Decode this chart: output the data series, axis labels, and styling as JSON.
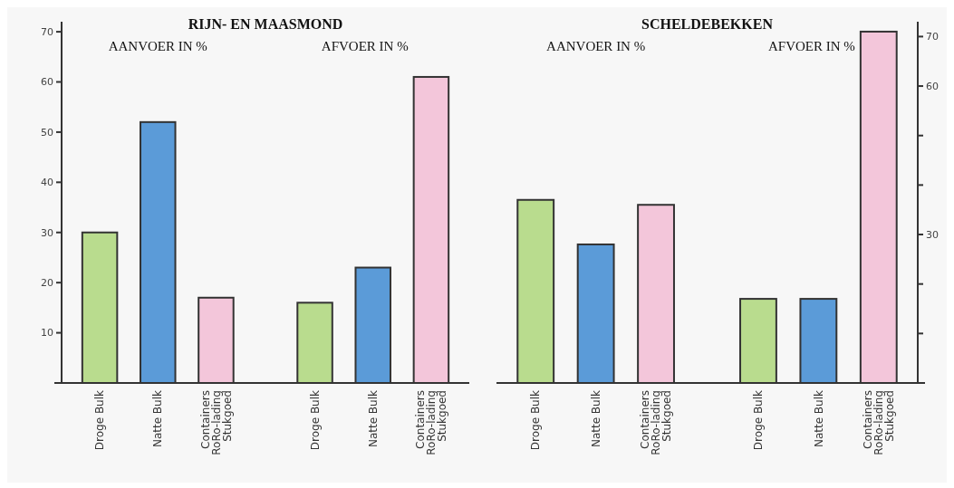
{
  "chart_data": [
    {
      "type": "bar",
      "title": "RIJN- EN MAASMOND",
      "annotations": [
        "AANVOER IN %",
        "AFVOER IN %"
      ],
      "categories": [
        "Droge Bulk",
        "Natte Bulk",
        "Containers\nRoRo-lading\nStukgoed",
        "Droge Bulk",
        "Natte Bulk",
        "Containers\nRoRo-lading\nStukgoed"
      ],
      "values": [
        30,
        52,
        17,
        16,
        23,
        61
      ],
      "colors": [
        "#b9dc8e",
        "#5b9bd8",
        "#f3c6da",
        "#b9dc8e",
        "#5b9bd8",
        "#f3c6da"
      ],
      "ylim": [
        0,
        72
      ],
      "yticks": [
        {
          "value": 0,
          "label": null
        },
        10,
        20,
        30,
        40,
        50,
        60,
        70
      ]
    },
    {
      "type": "bar",
      "title": "SCHELDEBEKKEN",
      "annotations": [
        "AANVOER IN %",
        "AFVOER IN %"
      ],
      "categories": [
        "Droge Bulk",
        "Natte Bulk",
        "Containers\nRoRo-lading\nStukgoed",
        "Droge Bulk",
        "Natte Bulk",
        "Containers\nRoRo-lading\nStukgoed"
      ],
      "series": [
        {
          "axis": "y2",
          "values": [
            37,
            28,
            36,
            17,
            17,
            71
          ],
          "colors": [
            "#b9dc8e",
            "#5b9bd8",
            "#f3c6da",
            "#b9dc8e",
            "#5b9bd8",
            "#f3c6da"
          ]
        }
      ],
      "y2lim": [
        0,
        73
      ],
      "y2ticks": [
        {
          "value": 0,
          "label": null
        },
        {
          "value": 10,
          "label": null
        },
        {
          "value": 20,
          "label": null
        },
        30,
        {
          "value": 40,
          "label": null
        },
        {
          "value": 50,
          "label": null
        },
        60,
        70
      ]
    }
  ]
}
